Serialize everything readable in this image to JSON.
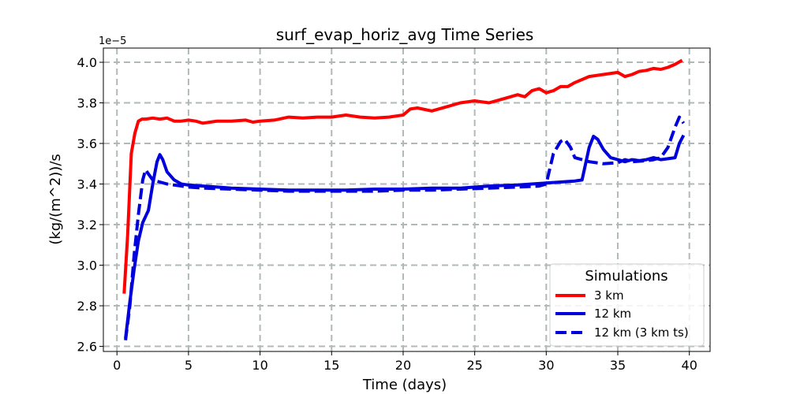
{
  "chart_data": {
    "type": "line",
    "title": "surf_evap_horiz_avg Time Series",
    "xlabel": "Time (days)",
    "ylabel": "(kg/(m^2))/s",
    "offset_label": "1e−5",
    "xlim": [
      -0.95,
      41.45
    ],
    "ylim": [
      2.575,
      4.07
    ],
    "xticks": [
      0,
      5,
      10,
      15,
      20,
      25,
      30,
      35,
      40
    ],
    "xtick_labels": [
      "0",
      "5",
      "10",
      "15",
      "20",
      "25",
      "30",
      "35",
      "40"
    ],
    "yticks": [
      2.6,
      2.8,
      3.0,
      3.2,
      3.4,
      3.6,
      3.8,
      4.0
    ],
    "ytick_labels": [
      "2.6",
      "2.8",
      "3.0",
      "3.2",
      "3.4",
      "3.6",
      "3.8",
      "4.0"
    ],
    "grid": true,
    "legend": {
      "title": "Simulations",
      "position": "lower-right"
    },
    "series": [
      {
        "name": "3 km",
        "color": "#ff0000",
        "dash": "solid",
        "x": [
          0.5,
          0.75,
          1.0,
          1.25,
          1.5,
          1.75,
          2.0,
          2.5,
          3.0,
          3.5,
          4.0,
          4.5,
          5.0,
          5.5,
          6.0,
          6.5,
          7.0,
          8.0,
          9.0,
          9.5,
          10.0,
          11.0,
          12.0,
          13.0,
          14.0,
          15.0,
          16.0,
          17.0,
          18.0,
          19.0,
          20.0,
          20.5,
          21.0,
          22.0,
          23.0,
          24.0,
          25.0,
          26.0,
          27.0,
          27.5,
          28.0,
          28.5,
          29.0,
          29.5,
          30.0,
          30.5,
          31.0,
          31.5,
          32.0,
          33.0,
          34.0,
          35.0,
          35.5,
          36.0,
          36.5,
          37.0,
          37.5,
          38.0,
          38.5,
          39.0,
          39.5
        ],
        "values": [
          2.86,
          3.15,
          3.55,
          3.65,
          3.71,
          3.72,
          3.72,
          3.725,
          3.72,
          3.725,
          3.71,
          3.71,
          3.715,
          3.71,
          3.7,
          3.705,
          3.71,
          3.71,
          3.715,
          3.705,
          3.71,
          3.715,
          3.73,
          3.725,
          3.73,
          3.73,
          3.74,
          3.73,
          3.725,
          3.73,
          3.74,
          3.77,
          3.775,
          3.76,
          3.78,
          3.8,
          3.81,
          3.8,
          3.82,
          3.83,
          3.84,
          3.83,
          3.86,
          3.87,
          3.85,
          3.86,
          3.88,
          3.88,
          3.9,
          3.93,
          3.94,
          3.95,
          3.93,
          3.94,
          3.955,
          3.96,
          3.97,
          3.965,
          3.975,
          3.99,
          4.01
        ]
      },
      {
        "name": "12 km",
        "color": "#0000dd",
        "dash": "solid",
        "x": [
          0.6,
          0.9,
          1.2,
          1.5,
          1.8,
          2.0,
          2.2,
          2.5,
          2.8,
          3.0,
          3.2,
          3.5,
          4.0,
          4.5,
          5.0,
          6.0,
          7.0,
          8.0,
          10.0,
          12.0,
          14.0,
          16.0,
          18.0,
          20.0,
          22.0,
          24.0,
          26.0,
          28.0,
          30.0,
          31.0,
          32.0,
          32.5,
          33.0,
          33.3,
          33.6,
          34.0,
          34.5,
          35.0,
          35.5,
          36.0,
          36.5,
          37.0,
          37.5,
          38.0,
          38.5,
          39.0,
          39.3,
          39.6
        ],
        "values": [
          2.64,
          2.82,
          2.98,
          3.12,
          3.21,
          3.24,
          3.27,
          3.4,
          3.51,
          3.545,
          3.52,
          3.46,
          3.42,
          3.4,
          3.395,
          3.39,
          3.385,
          3.38,
          3.375,
          3.37,
          3.37,
          3.37,
          3.375,
          3.375,
          3.38,
          3.38,
          3.39,
          3.395,
          3.405,
          3.41,
          3.415,
          3.42,
          3.58,
          3.635,
          3.62,
          3.57,
          3.53,
          3.52,
          3.51,
          3.52,
          3.515,
          3.52,
          3.53,
          3.52,
          3.525,
          3.53,
          3.6,
          3.64
        ]
      },
      {
        "name": "12 km (3 km ts)",
        "color": "#0000dd",
        "dash": "dashed",
        "x": [
          0.6,
          0.9,
          1.2,
          1.5,
          1.8,
          2.0,
          2.2,
          2.5,
          3.0,
          3.5,
          4.0,
          5.0,
          6.0,
          8.0,
          10.0,
          12.0,
          14.0,
          16.0,
          18.0,
          20.0,
          22.0,
          24.0,
          26.0,
          28.0,
          29.5,
          30.0,
          30.5,
          31.0,
          31.3,
          31.7,
          32.0,
          32.5,
          33.0,
          34.0,
          35.0,
          35.5,
          36.0,
          37.0,
          37.5,
          38.0,
          38.5,
          39.0,
          39.3,
          39.6
        ],
        "values": [
          2.63,
          2.8,
          3.05,
          3.25,
          3.42,
          3.47,
          3.45,
          3.42,
          3.41,
          3.4,
          3.395,
          3.385,
          3.38,
          3.375,
          3.37,
          3.365,
          3.365,
          3.365,
          3.365,
          3.37,
          3.37,
          3.375,
          3.38,
          3.385,
          3.39,
          3.4,
          3.55,
          3.61,
          3.62,
          3.58,
          3.53,
          3.52,
          3.51,
          3.5,
          3.505,
          3.52,
          3.51,
          3.515,
          3.52,
          3.53,
          3.58,
          3.68,
          3.73,
          3.7
        ]
      }
    ]
  }
}
